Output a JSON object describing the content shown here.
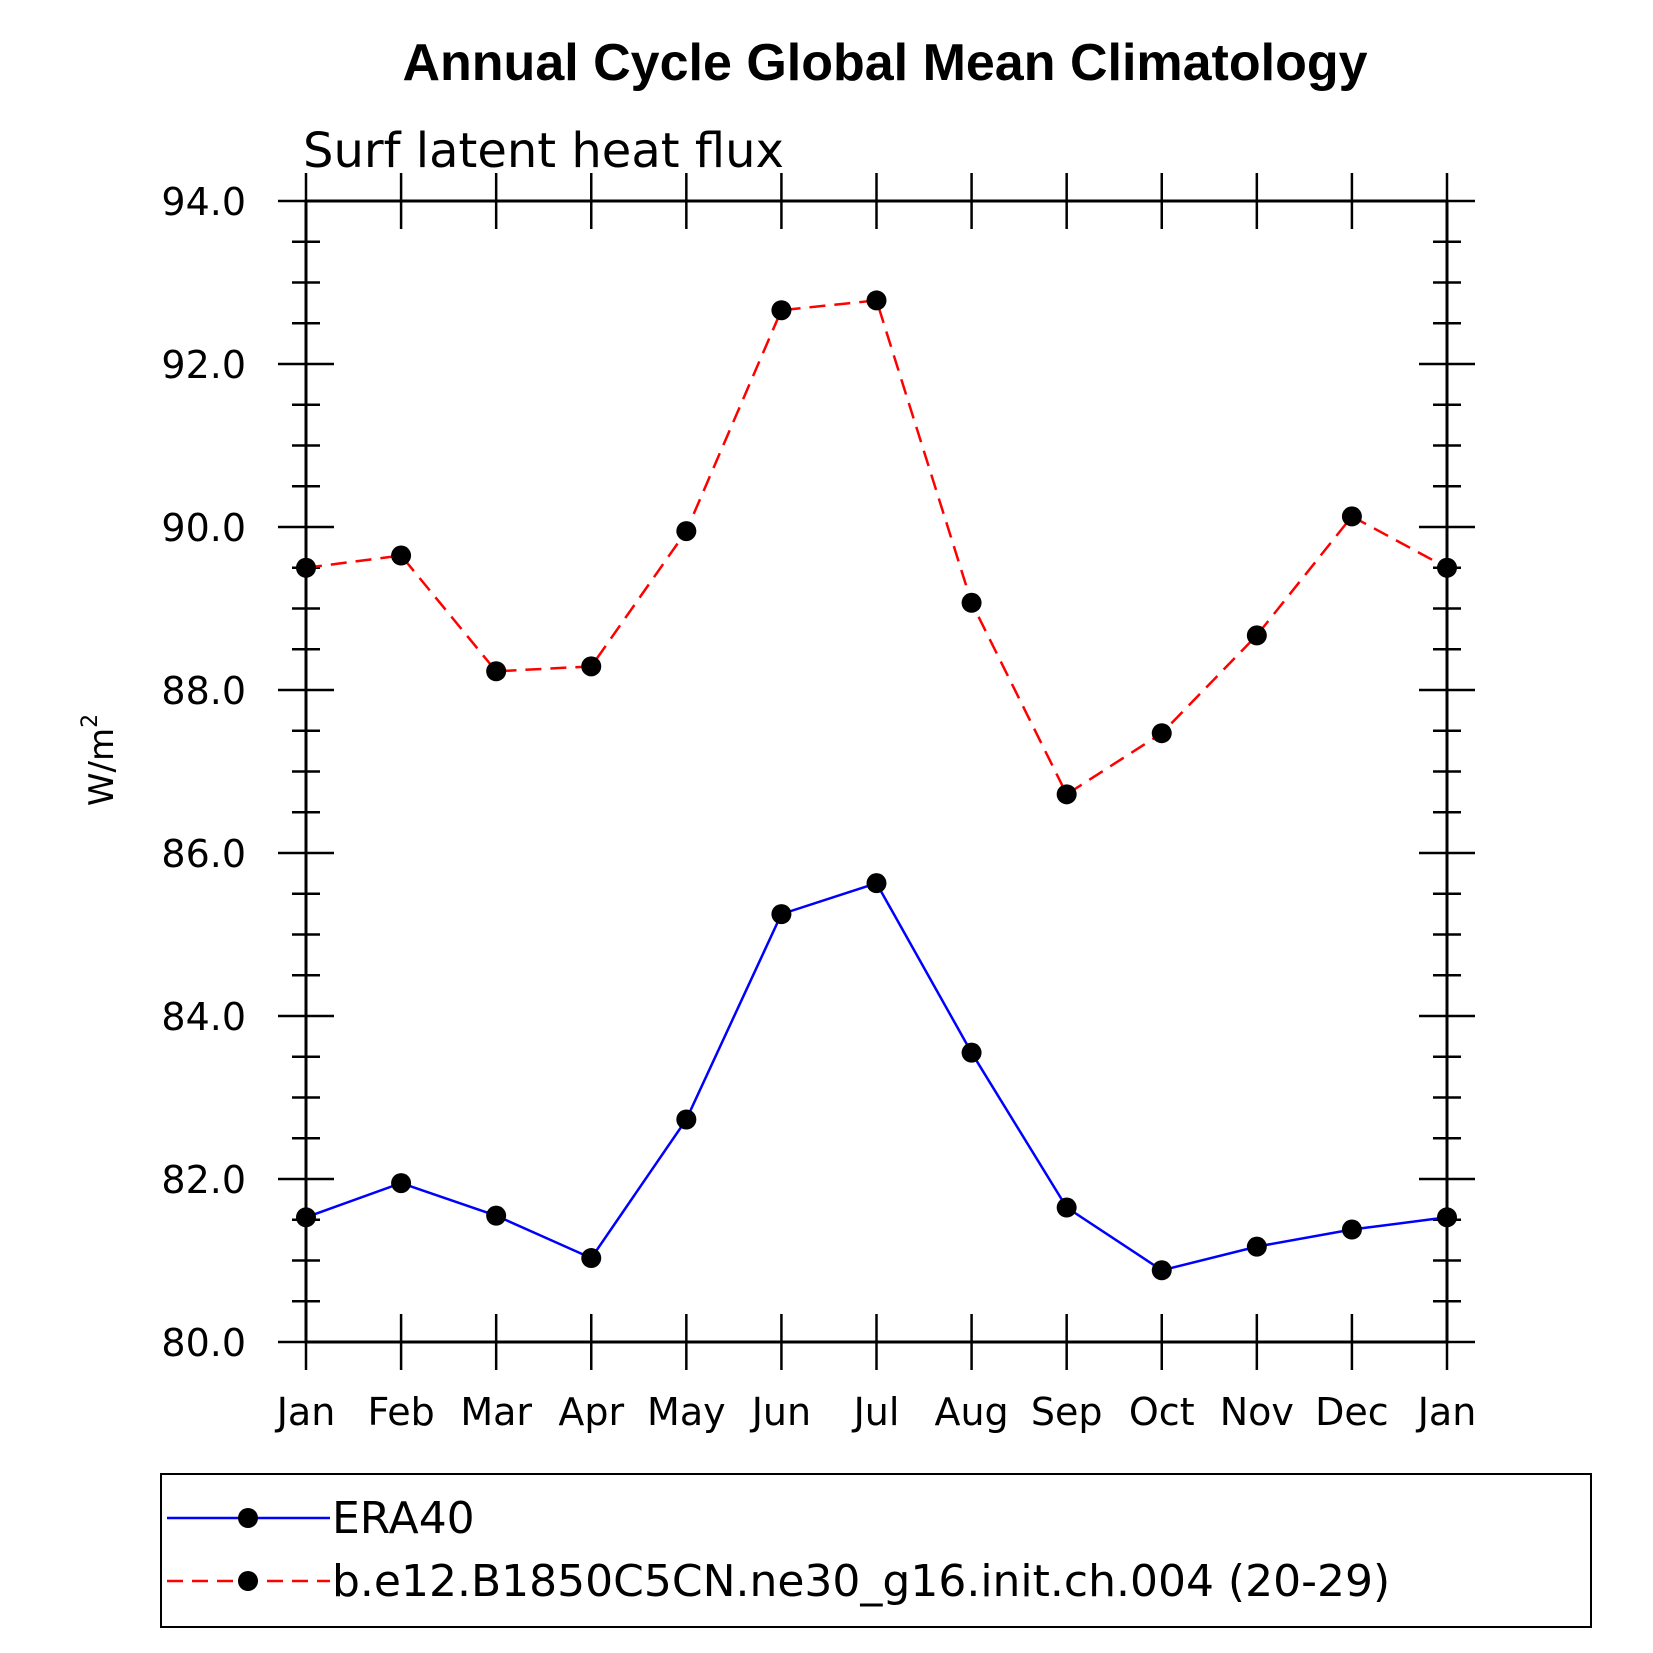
{
  "chart_data": {
    "type": "line",
    "title": "Annual Cycle Global Mean Climatology",
    "subtitle": "Surf latent heat flux",
    "xlabel": "",
    "ylabel_base": "W/m",
    "ylabel_sup": "2",
    "categories": [
      "Jan",
      "Feb",
      "Mar",
      "Apr",
      "May",
      "Jun",
      "Jul",
      "Aug",
      "Sep",
      "Oct",
      "Nov",
      "Dec",
      "Jan"
    ],
    "ylim": [
      80.0,
      94.0
    ],
    "yticks": [
      "80.0",
      "82.0",
      "84.0",
      "86.0",
      "88.0",
      "90.0",
      "92.0",
      "94.0"
    ],
    "grid": false,
    "legend_position": "bottom",
    "series": [
      {
        "name": "ERA40",
        "color": "#0000ff",
        "dash": "solid",
        "marker": "filled-circle",
        "values": [
          81.53,
          81.95,
          81.55,
          81.03,
          82.73,
          85.25,
          85.63,
          83.55,
          81.65,
          80.88,
          81.17,
          81.38,
          81.53
        ]
      },
      {
        "name": "b.e12.B1850C5CN.ne30_g16.init.ch.004 (20-29)",
        "color": "#ff0000",
        "dash": "dashed",
        "marker": "filled-circle",
        "values": [
          89.5,
          89.65,
          88.23,
          88.29,
          89.95,
          92.66,
          92.78,
          89.07,
          86.72,
          87.47,
          88.67,
          90.13,
          89.5
        ]
      }
    ]
  }
}
